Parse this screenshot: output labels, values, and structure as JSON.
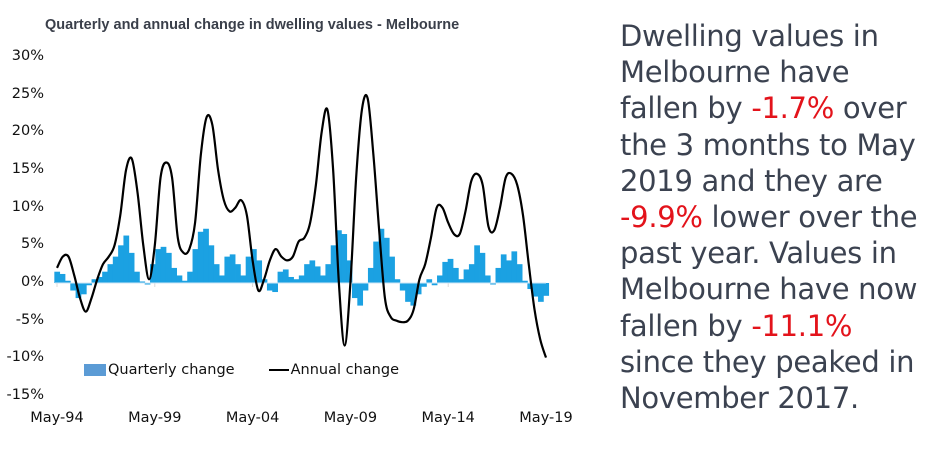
{
  "chart_data": {
    "type": "bar+line",
    "title": "Quarterly and annual change in dwelling values - Melbourne",
    "xlabel": "",
    "ylabel": "",
    "ylim": [
      -15,
      30
    ],
    "yticks": [
      30,
      25,
      20,
      15,
      10,
      5,
      0,
      -5,
      -10,
      -15
    ],
    "ytick_labels": [
      "30%",
      "25%",
      "20%",
      "15%",
      "10%",
      "5%",
      "0%",
      "-5%",
      "-10%",
      "-15%"
    ],
    "xtick_labels": [
      "May-94",
      "May-99",
      "May-04",
      "May-09",
      "May-14",
      "May-19"
    ],
    "x_start": "May-94",
    "x_end": "May-19",
    "frequency": "quarterly",
    "legend": {
      "position": "bottom-left",
      "entries": [
        "Quarterly change",
        "Annual change"
      ]
    },
    "colors": {
      "quarterly": "#1ba1e2",
      "annual": "#000000",
      "legend_swatch": "#5b9bd5"
    },
    "series": [
      {
        "name": "Quarterly change",
        "kind": "bar",
        "values": [
          1.5,
          1.2,
          0.3,
          -1.0,
          -2.0,
          -1.5,
          -0.3,
          0.5,
          0.8,
          1.5,
          2.5,
          3.5,
          5.0,
          6.3,
          4.0,
          1.5,
          0.2,
          -0.2,
          2.5,
          4.5,
          4.8,
          4.0,
          2.0,
          1.0,
          0.3,
          1.5,
          4.5,
          6.8,
          7.2,
          5.0,
          2.5,
          1.0,
          3.5,
          3.8,
          2.5,
          1.0,
          3.5,
          4.5,
          3.0,
          0.5,
          -1.0,
          -1.2,
          1.5,
          1.8,
          0.8,
          0.5,
          1.0,
          2.5,
          3.0,
          2.2,
          1.0,
          2.5,
          5.0,
          7.0,
          6.5,
          3.0,
          -2.0,
          -3.0,
          -1.0,
          2.0,
          5.5,
          7.2,
          6.0,
          3.5,
          0.5,
          -1.0,
          -2.5,
          -3.0,
          -1.5,
          -0.5,
          0.5,
          -0.3,
          1.0,
          2.8,
          3.2,
          2.0,
          0.5,
          1.8,
          2.5,
          5.0,
          4.0,
          1.0,
          -0.2,
          2.0,
          3.8,
          3.0,
          4.2,
          2.5,
          0.3,
          -0.8,
          -1.8,
          -2.5,
          -1.7
        ]
      },
      {
        "name": "Annual change",
        "kind": "line",
        "values": [
          2.0,
          3.5,
          3.5,
          1.0,
          -2.0,
          -3.8,
          -2.0,
          0.5,
          2.5,
          3.5,
          5.0,
          9.0,
          15.0,
          16.5,
          12.0,
          5.0,
          0.5,
          5.0,
          14.0,
          16.0,
          14.0,
          6.0,
          4.0,
          4.5,
          8.0,
          17.0,
          22.0,
          21.0,
          15.0,
          11.0,
          9.5,
          10.0,
          11.0,
          9.0,
          3.0,
          -1.0,
          0.5,
          3.0,
          4.5,
          3.5,
          3.0,
          3.5,
          5.5,
          6.0,
          8.0,
          13.0,
          20.0,
          23.0,
          15.0,
          0.0,
          -8.3,
          0.0,
          14.0,
          23.0,
          24.5,
          17.0,
          7.0,
          -2.0,
          -4.5,
          -5.0,
          -5.2,
          -5.0,
          -3.5,
          0.5,
          2.5,
          6.0,
          10.0,
          10.0,
          8.0,
          6.5,
          6.5,
          9.5,
          13.5,
          14.5,
          13.0,
          7.5,
          7.0,
          10.0,
          14.0,
          14.5,
          13.0,
          9.0,
          2.5,
          -3.5,
          -7.5,
          -9.9
        ]
      }
    ]
  },
  "commentary": {
    "segments": [
      {
        "text": "Dwelling values in Melbourne have fallen by ",
        "highlight": false
      },
      {
        "text": "-1.7%",
        "highlight": true
      },
      {
        "text": " over the 3 months to May 2019 and they are ",
        "highlight": false
      },
      {
        "text": "-9.9%",
        "highlight": true
      },
      {
        "text": " lower over the past year. Values in Melbourne have now fallen by ",
        "highlight": false
      },
      {
        "text": "-11.1%",
        "highlight": true
      },
      {
        "text": " since they peaked in November 2017.",
        "highlight": false
      }
    ],
    "colors": {
      "text": "#3b4250",
      "highlight": "#e3131b"
    }
  }
}
